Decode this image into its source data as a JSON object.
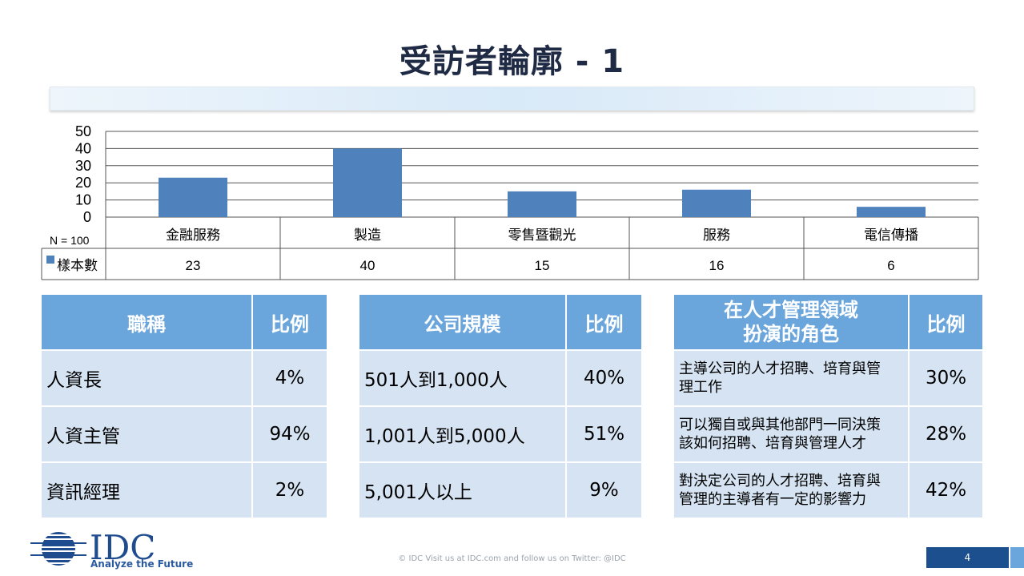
{
  "title": "受訪者輪廓 - 1",
  "chart_data": {
    "type": "bar",
    "categories": [
      "金融服務",
      "製造",
      "零售暨觀光",
      "服務",
      "電信傳播"
    ],
    "series": [
      {
        "name": "樣本數",
        "values": [
          23,
          40,
          15,
          16,
          6
        ]
      }
    ],
    "ylim": [
      0,
      50
    ],
    "yticks": [
      "0",
      "10",
      "20",
      "30",
      "40",
      "50"
    ],
    "grid": true,
    "note": "N = 100",
    "bar_color": "#4f81bd",
    "value_labels": [
      "23",
      "40",
      "15",
      "16",
      "6"
    ]
  },
  "tables": {
    "job": {
      "header": [
        "職稱",
        "比例"
      ],
      "rows": [
        {
          "label": "人資長",
          "value": "4%"
        },
        {
          "label": "人資主管",
          "value": "94%"
        },
        {
          "label": "資訊經理",
          "value": "2%"
        }
      ]
    },
    "size": {
      "header": [
        "公司規模",
        "比例"
      ],
      "rows": [
        {
          "label": "501人到1,000人",
          "value": "40%"
        },
        {
          "label": "1,001人到5,000人",
          "value": "51%"
        },
        {
          "label": "5,001人以上",
          "value": "9%"
        }
      ]
    },
    "role": {
      "header_line1": "在人才管理領域",
      "header_line2": "扮演的角色",
      "header_ratio": "比例",
      "rows": [
        {
          "line1": "主導公司的人才招聘、培育與管",
          "line2": "理工作",
          "value": "30%"
        },
        {
          "line1": "可以獨自或與其他部門一同決策",
          "line2": "該如何招聘、培育與管理人才",
          "value": "28%"
        },
        {
          "line1": "對決定公司的人才招聘、培育與",
          "line2": "管理的主導者有一定的影響力",
          "value": "42%"
        }
      ]
    }
  },
  "footer": {
    "logo_text": "IDC",
    "tagline": "Analyze the Future",
    "copyright": "© IDC   Visit us at IDC.com and follow us on Twitter: @IDC",
    "page": "4"
  },
  "colors": {
    "header_bg": "#6aa6dc",
    "cell_bg": "#d5e3f2",
    "title": "#1f2a44",
    "brand": "#1c4f8e"
  }
}
